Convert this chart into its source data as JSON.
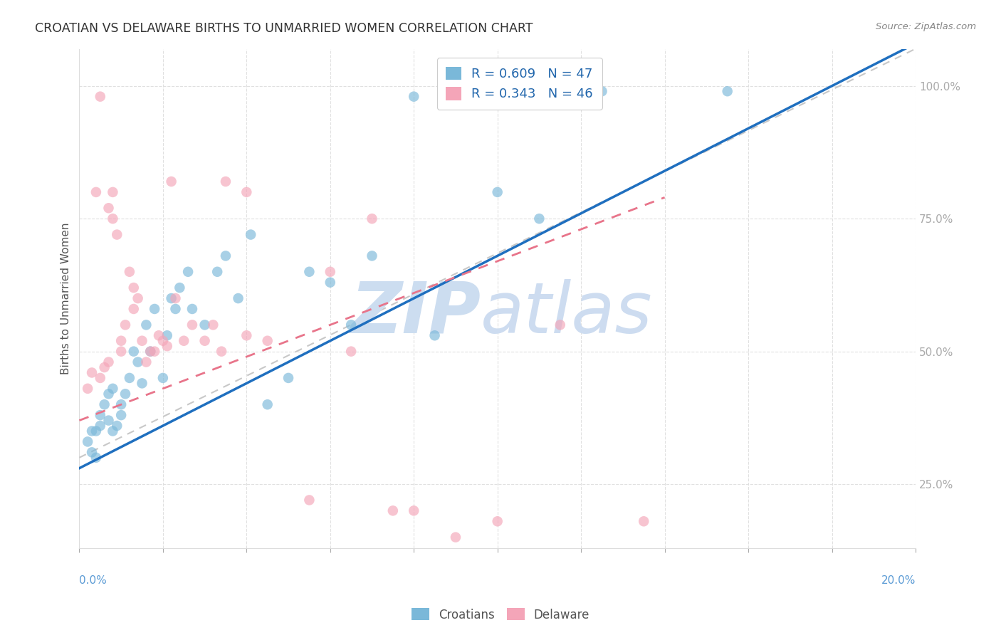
{
  "title": "CROATIAN VS DELAWARE BIRTHS TO UNMARRIED WOMEN CORRELATION CHART",
  "source": "Source: ZipAtlas.com",
  "ylabel": "Births to Unmarried Women",
  "y_ticks": [
    25.0,
    50.0,
    75.0,
    100.0
  ],
  "y_tick_labels": [
    "25.0%",
    "50.0%",
    "75.0%",
    "100.0%"
  ],
  "x_range": [
    0.0,
    20.0
  ],
  "y_range": [
    13.0,
    107.0
  ],
  "r_croatian": 0.609,
  "n_croatian": 47,
  "r_delaware": 0.343,
  "n_delaware": 46,
  "blue_color": "#7ab8d9",
  "pink_color": "#f4a5b8",
  "blue_line_color": "#1f6fbf",
  "pink_line_color": "#e8748a",
  "gray_diag_color": "#c8c8c8",
  "watermark_zip_color": "#ccddf0",
  "watermark_atlas_color": "#cddcf0",
  "background_color": "#ffffff",
  "croatians_x": [
    0.2,
    0.3,
    0.3,
    0.4,
    0.4,
    0.5,
    0.5,
    0.6,
    0.7,
    0.7,
    0.8,
    0.8,
    0.9,
    1.0,
    1.0,
    1.1,
    1.2,
    1.3,
    1.4,
    1.5,
    1.6,
    1.7,
    1.8,
    2.0,
    2.1,
    2.2,
    2.3,
    2.4,
    2.6,
    2.7,
    3.0,
    3.3,
    3.5,
    3.8,
    4.1,
    4.5,
    5.0,
    5.5,
    6.0,
    6.5,
    7.0,
    8.0,
    8.5,
    10.0,
    11.0,
    12.5,
    15.5
  ],
  "croatians_y": [
    33,
    31,
    35,
    30,
    35,
    36,
    38,
    40,
    37,
    42,
    43,
    35,
    36,
    40,
    38,
    42,
    45,
    50,
    48,
    44,
    55,
    50,
    58,
    45,
    53,
    60,
    58,
    62,
    65,
    58,
    55,
    65,
    68,
    60,
    72,
    40,
    45,
    65,
    63,
    55,
    68,
    98,
    53,
    80,
    75,
    99,
    99
  ],
  "delaware_x": [
    0.2,
    0.3,
    0.4,
    0.5,
    0.5,
    0.6,
    0.7,
    0.7,
    0.8,
    0.8,
    0.9,
    1.0,
    1.0,
    1.1,
    1.2,
    1.3,
    1.3,
    1.4,
    1.5,
    1.6,
    1.7,
    1.8,
    1.9,
    2.0,
    2.1,
    2.2,
    2.3,
    2.5,
    2.7,
    3.0,
    3.2,
    3.4,
    3.5,
    4.0,
    4.0,
    4.5,
    5.5,
    6.0,
    6.5,
    7.0,
    7.5,
    8.0,
    9.0,
    10.0,
    11.5,
    13.5
  ],
  "delaware_y": [
    43,
    46,
    80,
    98,
    45,
    47,
    48,
    77,
    80,
    75,
    72,
    50,
    52,
    55,
    65,
    62,
    58,
    60,
    52,
    48,
    50,
    50,
    53,
    52,
    51,
    82,
    60,
    52,
    55,
    52,
    55,
    50,
    82,
    53,
    80,
    52,
    22,
    65,
    50,
    75,
    20,
    20,
    15,
    18,
    55,
    18
  ],
  "blue_reg_x0": 0.0,
  "blue_reg_y0": 28.0,
  "blue_reg_x1": 20.0,
  "blue_reg_y1": 108.0,
  "pink_reg_x0": 0.0,
  "pink_reg_y0": 37.0,
  "pink_reg_x1": 14.0,
  "pink_reg_y1": 79.0,
  "diag_x0": 0.0,
  "diag_y0": 30.0,
  "diag_x1": 20.0,
  "diag_y1": 107.0
}
